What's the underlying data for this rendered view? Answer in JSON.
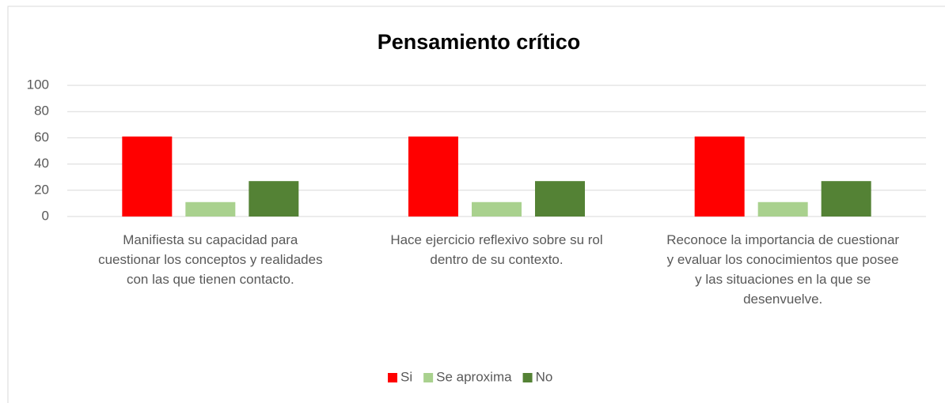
{
  "chart_data": {
    "type": "bar",
    "title": "Pensamiento crítico",
    "categories": [
      "Manifiesta su capacidad para cuestionar los conceptos y realidades con las que tienen contacto.",
      "Hace ejercicio reflexivo sobre su rol dentro de su contexto.",
      "Reconoce la importancia de cuestionar y evaluar los conocimientos que posee y las situaciones en la que se desenvuelve."
    ],
    "series": [
      {
        "name": "Si",
        "color": "#ff0000",
        "values": [
          61,
          61,
          61
        ]
      },
      {
        "name": "Se aproxima",
        "color": "#a9d18e",
        "values": [
          11,
          11,
          11
        ]
      },
      {
        "name": "No",
        "color": "#548235",
        "values": [
          27,
          27,
          27
        ]
      }
    ],
    "ylim": [
      0,
      100
    ],
    "yticks": [
      0,
      20,
      40,
      60,
      80,
      100
    ],
    "grid": true,
    "legend": "bottom"
  }
}
